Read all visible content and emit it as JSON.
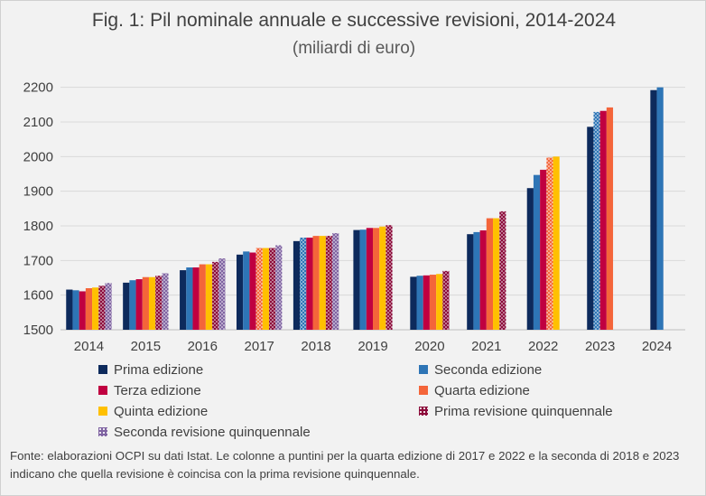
{
  "title": "Fig. 1: Pil nominale annuale e successive revisioni, 2014-2024",
  "subtitle": "(miliardi di euro)",
  "source_note": "Fonte: elaborazioni OCPI su dati Istat. Le colonne a puntini per la quarta edizione di 2017 e 2022 e la seconda di 2018 e 2023 indicano che quella revisione è coincisa con la prima revisione quinquennale.",
  "chart_data": {
    "type": "bar",
    "categories": [
      "2014",
      "2015",
      "2016",
      "2017",
      "2018",
      "2019",
      "2020",
      "2021",
      "2022",
      "2023",
      "2024"
    ],
    "ylim": [
      1500,
      2220
    ],
    "yticks": [
      1500,
      1600,
      1700,
      1800,
      1900,
      2000,
      2100,
      2200
    ],
    "grid": true,
    "legend_position": "bottom",
    "series": [
      {
        "name": "Prima edizione",
        "color": "#0d2a5c",
        "pattern": "solid",
        "values": [
          1616,
          1636,
          1672,
          1717,
          1756,
          1788,
          1653,
          1776,
          1909,
          2086,
          2192
        ]
      },
      {
        "name": "Seconda edizione",
        "color": "#2e75b6",
        "pattern": "solid",
        "values": [
          1614,
          1643,
          1680,
          1726,
          1766,
          1789,
          1656,
          1782,
          1947,
          2129,
          2200
        ],
        "dotted": [
          false,
          false,
          false,
          false,
          true,
          false,
          false,
          false,
          false,
          true,
          false
        ]
      },
      {
        "name": "Terza edizione",
        "color": "#c00040",
        "pattern": "solid",
        "values": [
          1611,
          1646,
          1680,
          1723,
          1766,
          1794,
          1657,
          1787,
          1962,
          2132,
          null
        ]
      },
      {
        "name": "Quarta edizione",
        "color": "#f4653a",
        "pattern": "solid",
        "values": [
          1620,
          1652,
          1689,
          1736,
          1771,
          1794,
          1659,
          1822,
          1997,
          2142,
          null
        ],
        "dotted": [
          false,
          false,
          false,
          true,
          false,
          false,
          false,
          false,
          true,
          false,
          false
        ]
      },
      {
        "name": "Quinta edizione",
        "color": "#ffc000",
        "pattern": "solid",
        "values": [
          1622,
          1652,
          1689,
          1736,
          1771,
          1798,
          1661,
          1822,
          2000,
          null,
          null
        ]
      },
      {
        "name": "Prima revisione quinquennale",
        "color": "#8b0a3a",
        "pattern": "dots",
        "values": [
          1627,
          1656,
          1696,
          1736,
          1771,
          1802,
          1670,
          1842,
          null,
          null,
          null
        ]
      },
      {
        "name": "Seconda revisione quinquennale",
        "color": "#8064a2",
        "pattern": "dots",
        "values": [
          1635,
          1663,
          1706,
          1744,
          1779,
          null,
          null,
          null,
          null,
          null,
          null
        ]
      }
    ]
  }
}
